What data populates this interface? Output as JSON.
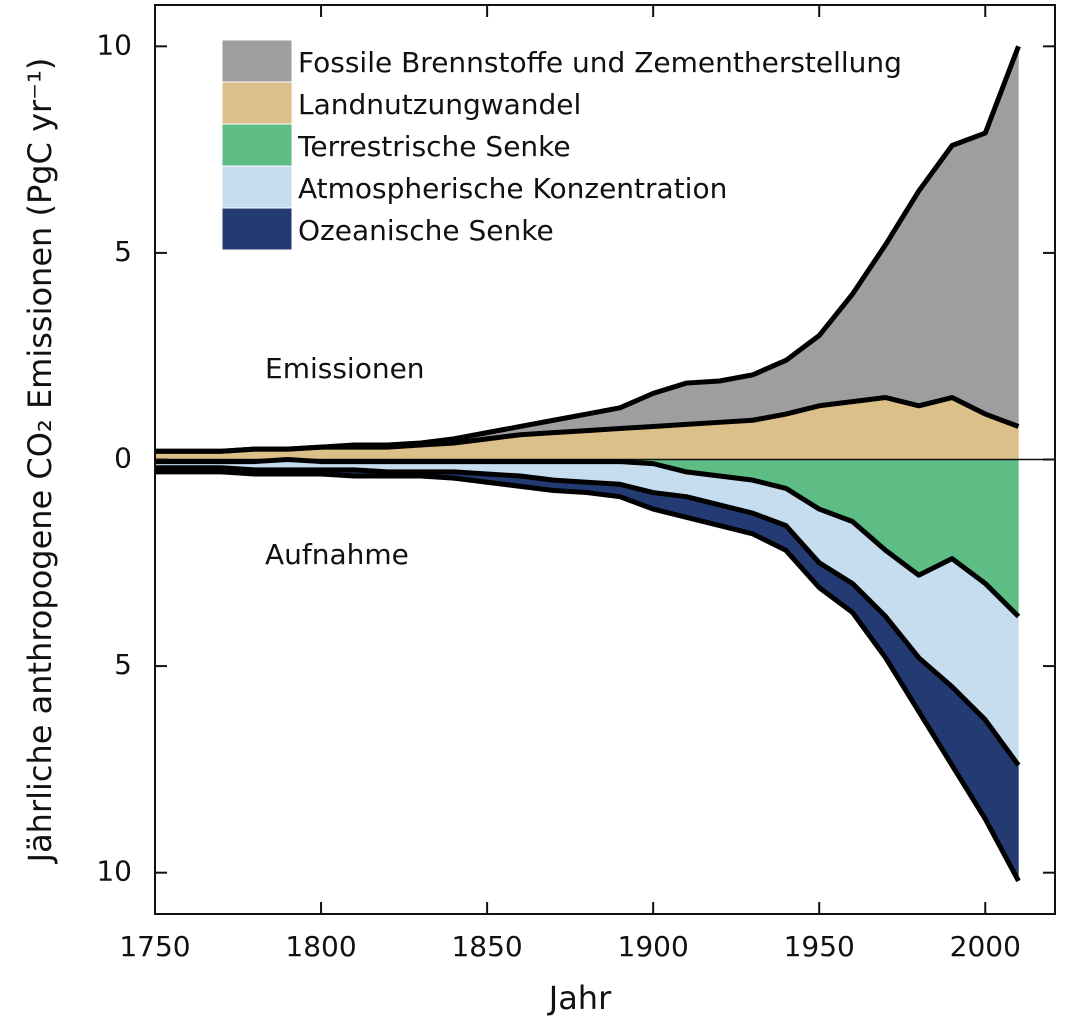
{
  "chart_data": {
    "type": "stacked_area",
    "xlabel": "Jahr",
    "ylabel": "Jährliche anthropogene CO₂ Emissionen (PgC yr⁻¹)",
    "annotations": [
      "Emissionen",
      "Aufnahme"
    ],
    "x": [
      1750,
      1760,
      1770,
      1780,
      1790,
      1800,
      1810,
      1820,
      1830,
      1840,
      1850,
      1860,
      1870,
      1880,
      1890,
      1900,
      1910,
      1920,
      1930,
      1940,
      1950,
      1960,
      1970,
      1980,
      1990,
      2000,
      2010
    ],
    "xlim": [
      1750,
      2021
    ],
    "xticks": [
      1750,
      1800,
      1850,
      1900,
      1950,
      2000
    ],
    "ylim": [
      -11,
      11
    ],
    "yticks": [
      {
        "value": -10,
        "label": "10"
      },
      {
        "value": -5,
        "label": "5"
      },
      0,
      5,
      10
    ],
    "series": [
      {
        "name": "Fossile Brennstoffe und Zementherstellung",
        "color": "#9d9e9f",
        "values": [
          0,
          0,
          0,
          0,
          0,
          0,
          0.05,
          0.05,
          0.05,
          0.1,
          0.15,
          0.2,
          0.3,
          0.4,
          0.5,
          0.8,
          1.0,
          1.0,
          1.1,
          1.3,
          1.7,
          2.6,
          3.7,
          5.2,
          6.1,
          6.8,
          9.2
        ]
      },
      {
        "name": "Landnutzungwandel",
        "color": "#dcc08a",
        "values": [
          0.2,
          0.2,
          0.2,
          0.25,
          0.25,
          0.3,
          0.3,
          0.3,
          0.35,
          0.4,
          0.5,
          0.6,
          0.65,
          0.7,
          0.75,
          0.8,
          0.85,
          0.9,
          0.95,
          1.1,
          1.3,
          1.4,
          1.5,
          1.3,
          1.5,
          1.1,
          0.8
        ]
      },
      {
        "name": "Terrestrische Senke",
        "color": "#5dbd85",
        "values": [
          -0.05,
          -0.05,
          -0.05,
          -0.05,
          0,
          -0.05,
          -0.05,
          -0.05,
          -0.05,
          -0.05,
          -0.05,
          -0.05,
          -0.05,
          -0.05,
          -0.05,
          -0.1,
          -0.3,
          -0.4,
          -0.5,
          -0.7,
          -1.2,
          -1.5,
          -2.2,
          -2.8,
          -2.4,
          -3.0,
          -3.8
        ]
      },
      {
        "name": "Atmospherische Konzentration",
        "color": "#c6dcef",
        "values": [
          -0.15,
          -0.15,
          -0.15,
          -0.2,
          -0.25,
          -0.2,
          -0.2,
          -0.25,
          -0.25,
          -0.25,
          -0.3,
          -0.35,
          -0.45,
          -0.5,
          -0.55,
          -0.7,
          -0.6,
          -0.7,
          -0.8,
          -0.9,
          -1.3,
          -1.5,
          -1.6,
          -2.0,
          -3.1,
          -3.3,
          -3.6
        ]
      },
      {
        "name": "Ozeanische Senke",
        "color": "#243a72",
        "values": [
          -0.1,
          -0.1,
          -0.1,
          -0.1,
          -0.1,
          -0.1,
          -0.15,
          -0.1,
          -0.1,
          -0.15,
          -0.2,
          -0.25,
          -0.25,
          -0.25,
          -0.3,
          -0.4,
          -0.5,
          -0.5,
          -0.5,
          -0.6,
          -0.6,
          -0.7,
          -1.0,
          -1.3,
          -1.9,
          -2.4,
          -2.8
        ]
      }
    ]
  }
}
